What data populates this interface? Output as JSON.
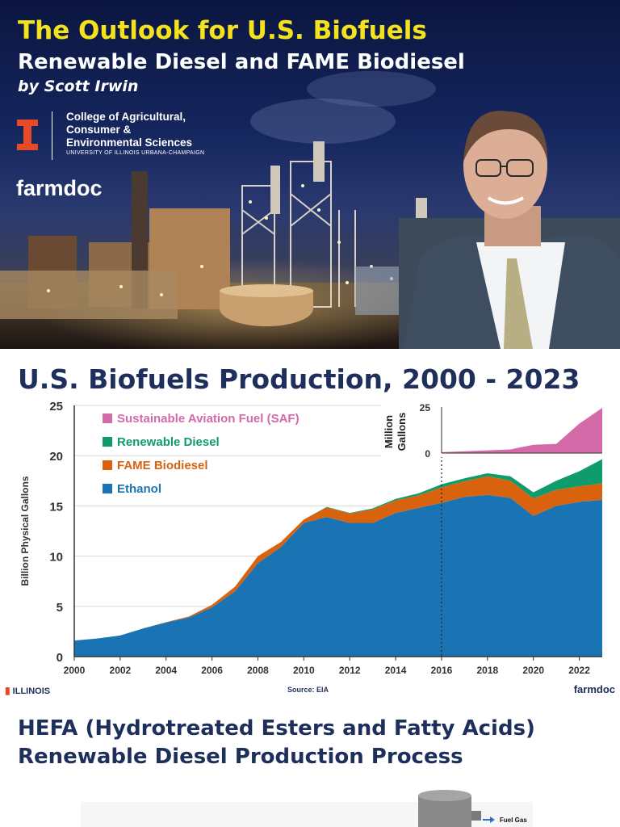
{
  "hero": {
    "title": "The Outlook for U.S. Biofuels",
    "subtitle": "Renewable Diesel and FAME Biodiesel",
    "byline": "by Scott Irwin",
    "college_line1": "College of Agricultural,",
    "college_line2": "Consumer &",
    "college_line3": "Environmental Sciences",
    "college_small": "UNIVERSITY OF ILLINOIS URBANA-CHAMPAIGN",
    "brand": "farmdoc"
  },
  "footer": {
    "left": "ILLINOIS",
    "source": "Source: EIA",
    "right": "farmdoc"
  },
  "section2": {
    "title_line1": "HEFA (Hydrotreated Esters and Fatty Acids)",
    "title_line2": "Renewable Diesel Production Process",
    "fuel_gas_label": "Fuel Gas"
  },
  "colors": {
    "ethanol": "#1a74b3",
    "fame": "#d9620f",
    "renewable_diesel": "#0f9b6c",
    "saf": "#d46aa8",
    "title_navy": "#1f2f5c",
    "hero_yellow": "#f4e21e",
    "illinois_orange": "#e84a27"
  },
  "chart_data": [
    {
      "type": "area",
      "title": "U.S. Biofuels Production, 2000 - 2023",
      "xlabel": "",
      "ylabel": "Billion Physical Gallons",
      "xlim": [
        2000,
        2023
      ],
      "ylim": [
        0,
        25
      ],
      "yticks": [
        0,
        5,
        10,
        15,
        20,
        25
      ],
      "xticks": [
        2000,
        2002,
        2004,
        2006,
        2008,
        2010,
        2012,
        2014,
        2016,
        2018,
        2020,
        2022
      ],
      "grid": true,
      "legend": "top-left",
      "annotation": "dotted vertical line at 2016",
      "stacked": true,
      "x": [
        2000,
        2001,
        2002,
        2003,
        2004,
        2005,
        2006,
        2007,
        2008,
        2009,
        2010,
        2011,
        2012,
        2013,
        2014,
        2015,
        2016,
        2017,
        2018,
        2019,
        2020,
        2021,
        2022,
        2023
      ],
      "series": [
        {
          "name": "Ethanol",
          "values": [
            1.6,
            1.8,
            2.1,
            2.8,
            3.4,
            3.9,
            4.9,
            6.5,
            9.3,
            10.9,
            13.3,
            13.9,
            13.3,
            13.3,
            14.3,
            14.8,
            15.3,
            15.9,
            16.1,
            15.8,
            14.0,
            15.0,
            15.4,
            15.6
          ]
        },
        {
          "name": "FAME Biodiesel",
          "values": [
            0.0,
            0.0,
            0.0,
            0.0,
            0.03,
            0.1,
            0.25,
            0.45,
            0.7,
            0.5,
            0.35,
            0.95,
            0.95,
            1.35,
            1.25,
            1.25,
            1.55,
            1.55,
            1.85,
            1.7,
            1.75,
            1.6,
            1.55,
            1.65
          ]
        },
        {
          "name": "Renewable Diesel",
          "values": [
            0,
            0,
            0,
            0,
            0,
            0,
            0,
            0,
            0,
            0,
            0,
            0.05,
            0.05,
            0.1,
            0.15,
            0.2,
            0.3,
            0.3,
            0.3,
            0.45,
            0.6,
            0.9,
            1.5,
            2.4
          ]
        },
        {
          "name": "Sustainable Aviation Fuel (SAF)",
          "values": [
            0,
            0,
            0,
            0,
            0,
            0,
            0,
            0,
            0,
            0,
            0,
            0,
            0,
            0,
            0,
            0,
            0,
            0,
            0,
            0,
            0,
            0,
            0,
            0
          ]
        }
      ]
    },
    {
      "type": "area",
      "title": "",
      "ylabel": "Million Gallons",
      "xlim": [
        2016,
        2023
      ],
      "ylim": [
        0,
        25
      ],
      "yticks": [
        0,
        25
      ],
      "series": [
        {
          "name": "Sustainable Aviation Fuel (SAF)",
          "x": [
            2016,
            2017,
            2018,
            2019,
            2020,
            2021,
            2022,
            2023
          ],
          "values": [
            0.5,
            1.0,
            1.5,
            2.0,
            4.5,
            5.0,
            16.0,
            24.5
          ]
        }
      ]
    }
  ]
}
